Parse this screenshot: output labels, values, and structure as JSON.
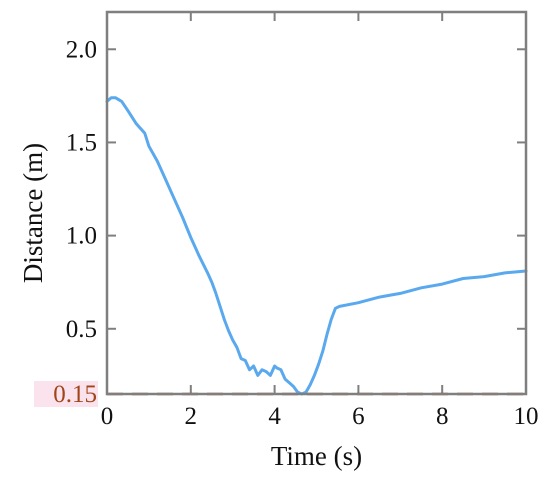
{
  "chart_data": {
    "type": "line",
    "xlabel": "Time (s)",
    "ylabel": "Distance (m)",
    "xlim": [
      0,
      10
    ],
    "ylim": [
      0.15,
      2.2
    ],
    "x_ticks": [
      0,
      2,
      4,
      6,
      8,
      10
    ],
    "x_tick_labels": [
      "0",
      "2",
      "4",
      "6",
      "8",
      "10"
    ],
    "y_ticks": [
      0.5,
      1.0,
      1.5,
      2.0
    ],
    "y_tick_labels": [
      "0.5",
      "1.0",
      "1.5",
      "2.0"
    ],
    "grid": false,
    "series": [
      {
        "color": "#5aa9ee",
        "x": [
          0,
          0.1,
          0.2,
          0.35,
          0.5,
          0.7,
          0.9,
          1.0,
          1.2,
          1.4,
          1.6,
          1.8,
          2.0,
          2.2,
          2.4,
          2.5,
          2.6,
          2.7,
          2.8,
          2.9,
          3.0,
          3.1,
          3.2,
          3.3,
          3.4,
          3.5,
          3.6,
          3.7,
          3.8,
          3.9,
          4.0,
          4.05,
          4.15,
          4.25,
          4.35,
          4.45,
          4.55,
          4.65,
          4.75,
          4.85,
          4.95,
          5.05,
          5.15,
          5.25,
          5.35,
          5.45,
          5.55,
          6.0,
          6.5,
          7.0,
          7.5,
          8.0,
          8.5,
          9.0,
          9.5,
          10.0
        ],
        "y": [
          1.72,
          1.74,
          1.74,
          1.72,
          1.67,
          1.6,
          1.55,
          1.48,
          1.4,
          1.3,
          1.2,
          1.1,
          0.99,
          0.89,
          0.8,
          0.75,
          0.69,
          0.62,
          0.55,
          0.49,
          0.44,
          0.4,
          0.34,
          0.33,
          0.28,
          0.3,
          0.25,
          0.28,
          0.27,
          0.25,
          0.3,
          0.29,
          0.28,
          0.23,
          0.21,
          0.19,
          0.16,
          0.15,
          0.16,
          0.2,
          0.25,
          0.31,
          0.38,
          0.47,
          0.55,
          0.61,
          0.62,
          0.64,
          0.67,
          0.69,
          0.72,
          0.74,
          0.77,
          0.78,
          0.8,
          0.81
        ]
      }
    ],
    "reference_line": {
      "y": 0.15,
      "label": "0.15",
      "color": "#a0451a",
      "style": "dashed"
    }
  }
}
